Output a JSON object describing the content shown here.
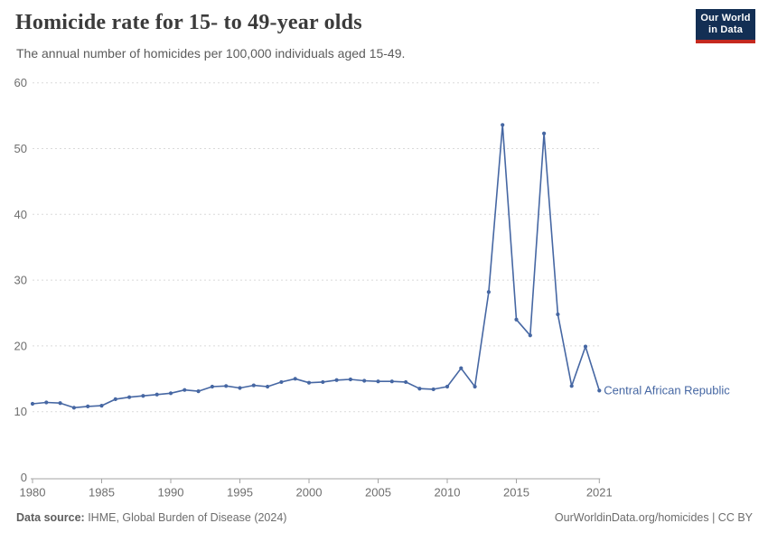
{
  "header": {
    "title": "Homicide rate for 15- to 49-year olds",
    "subtitle": "The annual number of homicides per 100,000 individuals aged 15-49."
  },
  "logo": {
    "line1": "Our World",
    "line2": "in Data",
    "bg_color": "#132f54",
    "bar_color": "#c5291f"
  },
  "footer": {
    "source_label": "Data source:",
    "source_text": " IHME, Global Burden of Disease (2024)",
    "link_text": "OurWorldinData.org/homicides | CC BY"
  },
  "colors": {
    "series": "#4667a3",
    "grid": "#dadada",
    "axis": "#a3a3a3",
    "tick_label": "#6e6e6e"
  },
  "chart_data": {
    "type": "line",
    "title": "Homicide rate for 15- to 49-year olds",
    "subtitle": "The annual number of homicides per 100,000 individuals aged 15-49.",
    "xlabel": "",
    "ylabel": "",
    "xlim": [
      1980,
      2021
    ],
    "ylim": [
      0,
      60
    ],
    "x_ticks": [
      1980,
      1985,
      1990,
      1995,
      2000,
      2005,
      2010,
      2015,
      2021
    ],
    "y_ticks": [
      0,
      10,
      20,
      30,
      40,
      50,
      60
    ],
    "grid": "horizontal-dashed",
    "legend_position": "end-of-line-label",
    "entity_label": "Central African Republic",
    "series": [
      {
        "name": "Central African Republic",
        "x": [
          1980,
          1981,
          1982,
          1983,
          1984,
          1985,
          1986,
          1987,
          1988,
          1989,
          1990,
          1991,
          1992,
          1993,
          1994,
          1995,
          1996,
          1997,
          1998,
          1999,
          2000,
          2001,
          2002,
          2003,
          2004,
          2005,
          2006,
          2007,
          2008,
          2009,
          2010,
          2011,
          2012,
          2013,
          2014,
          2015,
          2016,
          2017,
          2018,
          2019,
          2020,
          2021
        ],
        "values": [
          11.2,
          11.4,
          11.3,
          10.6,
          10.8,
          10.9,
          11.9,
          12.2,
          12.4,
          12.6,
          12.8,
          13.3,
          13.1,
          13.8,
          13.9,
          13.6,
          14.0,
          13.8,
          14.5,
          15.0,
          14.4,
          14.5,
          14.8,
          14.9,
          14.7,
          14.6,
          14.6,
          14.5,
          13.5,
          13.4,
          13.8,
          16.6,
          13.8,
          28.2,
          53.6,
          24.0,
          21.6,
          52.3,
          24.8,
          13.9,
          19.9,
          13.2
        ]
      }
    ]
  }
}
